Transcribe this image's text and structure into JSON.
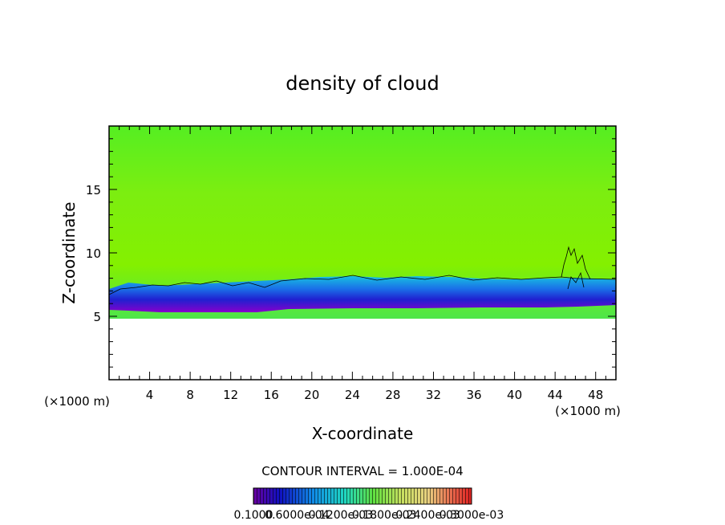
{
  "chart_data": {
    "type": "heatmap",
    "title": "density of cloud",
    "xlabel": "X-coordinate",
    "ylabel": "Z-coordinate",
    "x_units": "(×1000 m)",
    "y_units": "(×1000 m)",
    "xlim": [
      0,
      50
    ],
    "ylim": [
      0,
      20
    ],
    "x_ticks": [
      4,
      8,
      12,
      16,
      20,
      24,
      28,
      32,
      36,
      40,
      44,
      48
    ],
    "y_ticks": [
      5,
      10,
      15
    ],
    "grid": false,
    "contour_interval_text": "CONTOUR INTERVAL = 1.000E-04",
    "colorbar_labels": [
      "0.1000",
      "0.6000e-04",
      "0.1200e-03",
      "0.1800e-03",
      "0.2400e-03",
      "0.3000e-03"
    ],
    "field": {
      "cloud_base_km": 5.6,
      "cloud_top_km": 20,
      "contour_top_km": 7.8,
      "features": [
        {
          "type": "convective-cell",
          "x_km": 45.5,
          "z_range_km": [
            6.5,
            13
          ]
        }
      ]
    }
  },
  "colors": {
    "cloud_field": "#84f000",
    "upper_cloud": "#55ee22",
    "base_violet": "#8b00cc",
    "base_blue": "#2020d8",
    "base_cyan": "#10b8e8"
  }
}
